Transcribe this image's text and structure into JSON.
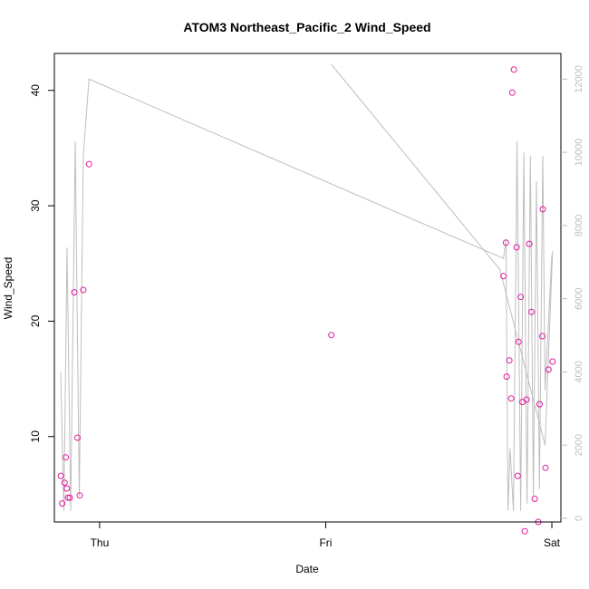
{
  "chart_data": {
    "type": "scatter",
    "title": "ATOM3 Northeast_Pacific_2 Wind_Speed",
    "xlabel": "Date",
    "ylabel": "Wind_Speed",
    "x_ticks": [
      {
        "value": 0.0,
        "label": "Thu"
      },
      {
        "value": 1.0,
        "label": "Fri"
      },
      {
        "value": 2.0,
        "label": "Sat"
      }
    ],
    "xlim": [
      -0.2,
      2.04
    ],
    "ylim": [
      2.6,
      43.2
    ],
    "y_ticks": [
      10,
      20,
      30,
      40
    ],
    "y2lim": [
      -100,
      12700
    ],
    "y2_ticks": [
      0,
      2000,
      4000,
      6000,
      8000,
      10000,
      12000
    ],
    "colors": {
      "points": "#e0199f",
      "line": "#bebebe",
      "right_axis": "#bebebe",
      "frame": "#000000"
    },
    "series": [
      {
        "kind": "points",
        "axis": "left",
        "x": [
          -0.171,
          -0.165,
          -0.155,
          -0.15,
          -0.145,
          -0.14,
          -0.132,
          -0.112,
          -0.098,
          -0.088,
          -0.072,
          -0.047,
          1.025,
          1.786,
          1.797,
          1.8,
          1.812,
          1.82,
          1.825,
          1.832,
          1.844,
          1.849,
          1.853,
          1.862,
          1.87,
          1.88,
          1.888,
          1.9,
          1.91,
          1.924,
          1.94,
          1.946,
          1.958,
          1.96,
          1.972,
          1.985,
          2.003
        ],
        "y": [
          6.6,
          4.2,
          6.0,
          8.2,
          5.5,
          4.7,
          4.7,
          22.5,
          9.9,
          4.9,
          22.7,
          33.6,
          18.8,
          23.9,
          26.8,
          15.2,
          16.6,
          13.3,
          39.8,
          41.8,
          26.4,
          6.6,
          18.2,
          22.1,
          13.0,
          1.8,
          13.2,
          26.7,
          20.8,
          4.6,
          2.6,
          12.8,
          18.7,
          29.7,
          7.3,
          15.8,
          16.5
        ]
      },
      {
        "kind": "line",
        "axis": "right",
        "x": [
          -0.172,
          -0.158,
          -0.144,
          -0.128,
          -0.108,
          -0.09,
          -0.072,
          -0.047,
          1.786,
          1.797,
          1.806,
          1.815,
          1.83,
          1.846,
          1.862,
          1.876,
          1.89,
          1.905,
          1.918,
          1.932,
          1.945,
          1.96,
          1.97,
          2.0
        ],
        "y": [
          4000,
          200,
          7400,
          200,
          10300,
          600,
          9900,
          12000,
          7100,
          7600,
          200,
          1900,
          200,
          10300,
          200,
          10000,
          400,
          9900,
          600,
          9200,
          800,
          9900,
          3500,
          7200
        ]
      },
      {
        "kind": "line",
        "axis": "right",
        "x": [
          1.025,
          1.77,
          1.97,
          2.003
        ],
        "y": [
          12400,
          6800,
          2000,
          7300
        ]
      }
    ]
  }
}
